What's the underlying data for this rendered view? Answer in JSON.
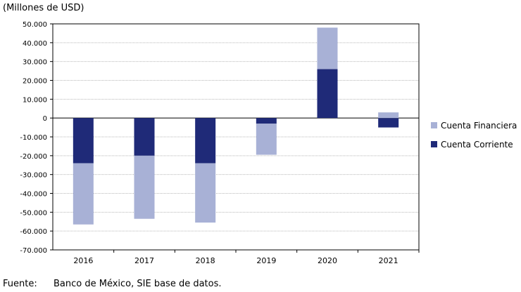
{
  "header": {
    "unit_label": "(Millones de USD)"
  },
  "footer": {
    "prefix": "Fuente:",
    "source": "Banco de México, SIE base de datos."
  },
  "chart_data": {
    "type": "bar",
    "stacked": true,
    "title": "",
    "xlabel": "",
    "ylabel": "(Millones de USD)",
    "ylim": [
      -70000,
      50000
    ],
    "yticks": [
      50000,
      40000,
      30000,
      20000,
      10000,
      0,
      -10000,
      -20000,
      -30000,
      -40000,
      -50000,
      -60000,
      -70000
    ],
    "ytick_labels": [
      "50.000",
      "40.000",
      "30.000",
      "20.000",
      "10.000",
      "0",
      "-10.000",
      "-20.000",
      "-30.000",
      "-40.000",
      "-50.000",
      "-60.000",
      "-70.000"
    ],
    "categories": [
      "2016",
      "2017",
      "2018",
      "2019",
      "2020",
      "2021"
    ],
    "grid": true,
    "legend_position": "right",
    "series": [
      {
        "name": "Cuenta Financiera",
        "color": "#a8b1d6",
        "values": [
          -32500,
          -33500,
          -31500,
          -16500,
          22000,
          3000
        ]
      },
      {
        "name": "Cuenta Corriente",
        "color": "#1f2a78",
        "values": [
          -24000,
          -20000,
          -24000,
          -3000,
          26000,
          -5000
        ]
      }
    ]
  }
}
